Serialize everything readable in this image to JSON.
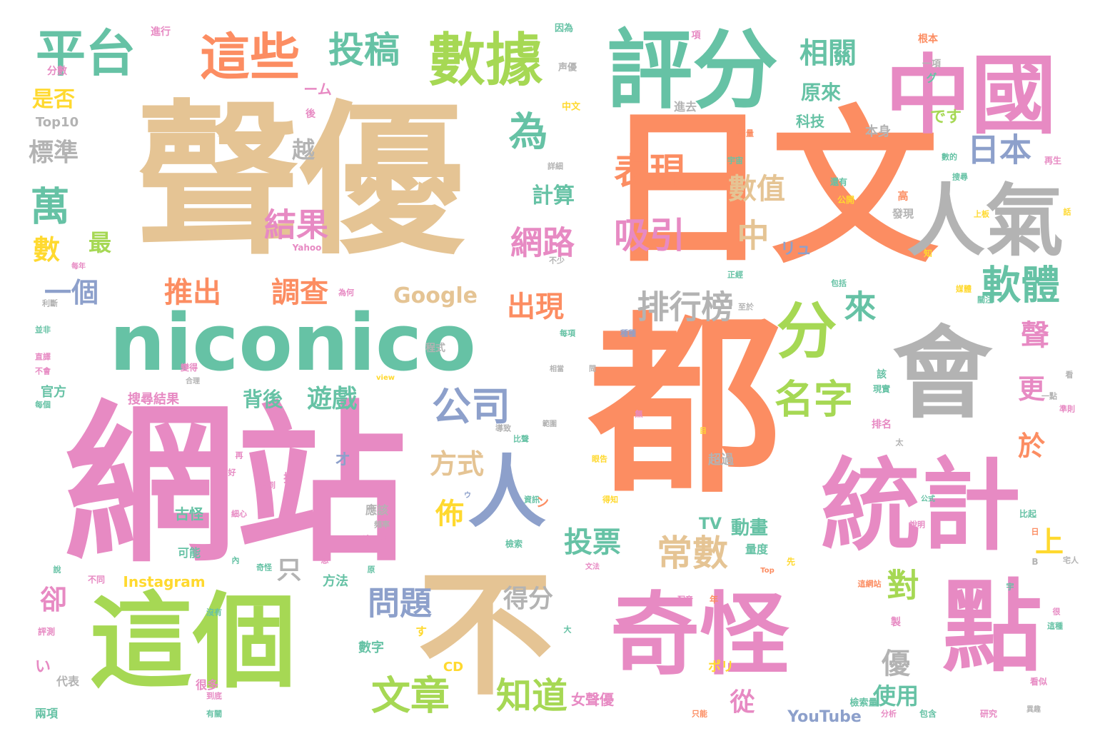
{
  "palette": {
    "orange": "#FC8D62",
    "tan": "#E5C494",
    "pink": "#E78AC3",
    "teal": "#66C2A5",
    "green": "#A6D854",
    "gray": "#B3B3B3",
    "blue": "#8DA0CB",
    "yellow": "#FFD92F"
  },
  "words": [
    {
      "text": "聲優",
      "color": "tan"
    },
    {
      "text": "日文",
      "color": "orange"
    },
    {
      "text": "都",
      "color": "orange"
    },
    {
      "text": "網站",
      "color": "pink"
    },
    {
      "text": "不",
      "color": "tan"
    },
    {
      "text": "評分",
      "color": "teal"
    },
    {
      "text": "中國",
      "color": "pink"
    },
    {
      "text": "統計",
      "color": "pink"
    },
    {
      "text": "奇怪",
      "color": "pink"
    },
    {
      "text": "點",
      "color": "pink"
    },
    {
      "text": "這個",
      "color": "green"
    },
    {
      "text": "會",
      "color": "gray"
    },
    {
      "text": "niconico",
      "color": "teal"
    },
    {
      "text": "數據",
      "color": "green"
    },
    {
      "text": "人氣",
      "color": "gray"
    },
    {
      "text": "這些",
      "color": "orange"
    },
    {
      "text": "平台",
      "color": "teal"
    },
    {
      "text": "人",
      "color": "blue"
    },
    {
      "text": "分",
      "color": "green"
    },
    {
      "text": "投稿",
      "color": "teal"
    },
    {
      "text": "表現",
      "color": "orange"
    },
    {
      "text": "吸引",
      "color": "pink"
    },
    {
      "text": "軟體",
      "color": "teal"
    },
    {
      "text": "公司",
      "color": "blue"
    },
    {
      "text": "名字",
      "color": "green"
    },
    {
      "text": "排行榜",
      "color": "gray"
    },
    {
      "text": "常數",
      "color": "tan"
    },
    {
      "text": "文章",
      "color": "green"
    },
    {
      "text": "知道",
      "color": "green"
    },
    {
      "text": "問題",
      "color": "blue"
    },
    {
      "text": "相關",
      "color": "teal"
    },
    {
      "text": "為",
      "color": "teal"
    },
    {
      "text": "日本",
      "color": "blue"
    },
    {
      "text": "結果",
      "color": "pink"
    },
    {
      "text": "萬",
      "color": "teal"
    },
    {
      "text": "網路",
      "color": "pink"
    },
    {
      "text": "數值",
      "color": "tan"
    },
    {
      "text": "中",
      "color": "tan"
    },
    {
      "text": "推出",
      "color": "orange"
    },
    {
      "text": "調查",
      "color": "orange"
    },
    {
      "text": "出現",
      "color": "orange"
    },
    {
      "text": "一個",
      "color": "blue"
    },
    {
      "text": "標準",
      "color": "gray"
    },
    {
      "text": "是否",
      "color": "yellow"
    },
    {
      "text": "越",
      "color": "gray"
    },
    {
      "text": "計算",
      "color": "teal"
    },
    {
      "text": "方式",
      "color": "tan"
    },
    {
      "text": "投票",
      "color": "teal"
    },
    {
      "text": "來",
      "color": "teal"
    },
    {
      "text": "更",
      "color": "pink"
    },
    {
      "text": "聲",
      "color": "pink"
    },
    {
      "text": "對",
      "color": "green"
    },
    {
      "text": "遊戲",
      "color": "teal"
    },
    {
      "text": "背後",
      "color": "teal"
    },
    {
      "text": "得分",
      "color": "gray"
    },
    {
      "text": "優",
      "color": "gray"
    },
    {
      "text": "使用",
      "color": "teal"
    },
    {
      "text": "佈",
      "color": "yellow"
    },
    {
      "text": "上",
      "color": "yellow"
    },
    {
      "text": "於",
      "color": "orange"
    },
    {
      "text": "卻",
      "color": "pink"
    },
    {
      "text": "數",
      "color": "yellow"
    },
    {
      "text": "最",
      "color": "green"
    },
    {
      "text": "Google",
      "color": "tan"
    },
    {
      "text": "從",
      "color": "pink"
    },
    {
      "text": "只",
      "color": "gray"
    },
    {
      "text": "原來",
      "color": "teal"
    },
    {
      "text": "動畫",
      "color": "teal"
    },
    {
      "text": "TV",
      "color": "teal"
    },
    {
      "text": "YouTube",
      "color": "blue"
    },
    {
      "text": "Instagram",
      "color": "yellow"
    },
    {
      "text": "Top10",
      "color": "gray"
    },
    {
      "text": "分數",
      "color": "pink"
    },
    {
      "text": "進行",
      "color": "pink"
    },
    {
      "text": "搜尋結果",
      "color": "pink"
    },
    {
      "text": "女聲優",
      "color": "pink"
    },
    {
      "text": "官方",
      "color": "teal"
    },
    {
      "text": "科技",
      "color": "teal"
    },
    {
      "text": "本身",
      "color": "gray"
    },
    {
      "text": "古怪",
      "color": "teal"
    },
    {
      "text": "可能",
      "color": "teal"
    },
    {
      "text": "方法",
      "color": "teal"
    },
    {
      "text": "數字",
      "color": "teal"
    },
    {
      "text": "代表",
      "color": "gray"
    },
    {
      "text": "兩項",
      "color": "teal"
    },
    {
      "text": "超過",
      "color": "gray"
    },
    {
      "text": "很多",
      "color": "pink"
    },
    {
      "text": "應該",
      "color": "gray"
    },
    {
      "text": "量度",
      "color": "teal"
    },
    {
      "text": "CD",
      "color": "yellow"
    },
    {
      "text": "ポリ",
      "color": "yellow"
    },
    {
      "text": "オ",
      "color": "blue"
    },
    {
      "text": "リュ",
      "color": "blue"
    },
    {
      "text": "です",
      "color": "green"
    },
    {
      "text": "ーム",
      "color": "pink"
    },
    {
      "text": "進去",
      "color": "gray"
    },
    {
      "text": "中文",
      "color": "yellow"
    },
    {
      "text": "声優",
      "color": "gray"
    },
    {
      "text": "項",
      "color": "pink"
    },
    {
      "text": "因為",
      "color": "teal"
    },
    {
      "text": "根本",
      "color": "orange"
    },
    {
      "text": "一項",
      "color": "gray"
    },
    {
      "text": "グ",
      "color": "teal"
    },
    {
      "text": "後",
      "color": "pink"
    },
    {
      "text": "詳細",
      "color": "gray"
    },
    {
      "text": "銷量",
      "color": "orange"
    },
    {
      "text": "宇宙",
      "color": "teal"
    },
    {
      "text": "還有",
      "color": "teal"
    },
    {
      "text": "公開",
      "color": "yellow"
    },
    {
      "text": "數的",
      "color": "teal"
    },
    {
      "text": "搜尋",
      "color": "teal"
    },
    {
      "text": "再生",
      "color": "pink"
    },
    {
      "text": "高",
      "color": "orange"
    },
    {
      "text": "發現",
      "color": "gray"
    },
    {
      "text": "上板",
      "color": "yellow"
    },
    {
      "text": "話",
      "color": "yellow"
    },
    {
      "text": "Yahoo",
      "color": "pink"
    },
    {
      "text": "每年",
      "color": "pink"
    },
    {
      "text": "為何",
      "color": "pink"
    },
    {
      "text": "利斷",
      "color": "gray"
    },
    {
      "text": "並非",
      "color": "teal"
    },
    {
      "text": "直譯",
      "color": "pink"
    },
    {
      "text": "不會",
      "color": "pink"
    },
    {
      "text": "每個",
      "color": "teal"
    },
    {
      "text": "變得",
      "color": "pink"
    },
    {
      "text": "程式",
      "color": "gray"
    },
    {
      "text": "view",
      "color": "yellow"
    },
    {
      "text": "合理",
      "color": "gray"
    },
    {
      "text": "相當",
      "color": "gray"
    },
    {
      "text": "問",
      "color": "gray"
    },
    {
      "text": "不少",
      "color": "gray"
    },
    {
      "text": "正經",
      "color": "teal"
    },
    {
      "text": "至於",
      "color": "gray"
    },
    {
      "text": "每項",
      "color": "teal"
    },
    {
      "text": "種種",
      "color": "blue"
    },
    {
      "text": "包括",
      "color": "teal"
    },
    {
      "text": "關注",
      "color": "teal"
    },
    {
      "text": "媒體",
      "color": "yellow"
    },
    {
      "text": "該",
      "color": "teal"
    },
    {
      "text": "看",
      "color": "gray"
    },
    {
      "text": "一點",
      "color": "gray"
    },
    {
      "text": "準則",
      "color": "pink"
    },
    {
      "text": "現實",
      "color": "teal"
    },
    {
      "text": "範圍",
      "color": "gray"
    },
    {
      "text": "導致",
      "color": "gray"
    },
    {
      "text": "比聲",
      "color": "teal"
    },
    {
      "text": "眼告",
      "color": "yellow"
    },
    {
      "text": "得知",
      "color": "yellow"
    },
    {
      "text": "資訊",
      "color": "teal"
    },
    {
      "text": "頻率",
      "color": "gray"
    },
    {
      "text": "這一項",
      "color": "pink"
    },
    {
      "text": "檢索",
      "color": "teal"
    },
    {
      "text": "檢索量",
      "color": "teal"
    },
    {
      "text": "分析",
      "color": "pink"
    },
    {
      "text": "包含",
      "color": "teal"
    },
    {
      "text": "研究",
      "color": "pink"
    },
    {
      "text": "異趣",
      "color": "gray"
    },
    {
      "text": "只能",
      "color": "orange"
    },
    {
      "text": "有關",
      "color": "teal"
    },
    {
      "text": "到底",
      "color": "pink"
    },
    {
      "text": "評測",
      "color": "pink"
    },
    {
      "text": "沒有",
      "color": "teal"
    },
    {
      "text": "細心",
      "color": "pink"
    },
    {
      "text": "奇怪",
      "color": "teal"
    },
    {
      "text": "想",
      "color": "pink"
    },
    {
      "text": "內",
      "color": "teal"
    },
    {
      "text": "說",
      "color": "teal"
    },
    {
      "text": "不同",
      "color": "pink"
    },
    {
      "text": "原",
      "color": "teal"
    },
    {
      "text": "文法",
      "color": "pink"
    },
    {
      "text": "先",
      "color": "yellow"
    },
    {
      "text": "Top",
      "color": "orange"
    },
    {
      "text": "B",
      "color": "gray"
    },
    {
      "text": "宅人",
      "color": "gray"
    },
    {
      "text": "很",
      "color": "pink"
    },
    {
      "text": "這種",
      "color": "teal"
    },
    {
      "text": "看似",
      "color": "pink"
    },
    {
      "text": "配音",
      "color": "pink"
    },
    {
      "text": "年",
      "color": "orange"
    },
    {
      "text": "大",
      "color": "teal"
    },
    {
      "text": "製",
      "color": "pink"
    },
    {
      "text": "這網站",
      "color": "orange"
    },
    {
      "text": "宇",
      "color": "teal"
    },
    {
      "text": "日",
      "color": "orange"
    },
    {
      "text": "比起",
      "color": "teal"
    },
    {
      "text": "說明",
      "color": "pink"
    },
    {
      "text": "公式",
      "color": "teal"
    },
    {
      "text": "太",
      "color": "gray"
    },
    {
      "text": "排名",
      "color": "pink"
    },
    {
      "text": "目",
      "color": "yellow"
    },
    {
      "text": "無",
      "color": "pink"
    },
    {
      "text": "再",
      "color": "pink"
    },
    {
      "text": "好",
      "color": "pink"
    },
    {
      "text": "看到",
      "color": "pink"
    },
    {
      "text": "捨",
      "color": "pink"
    },
    {
      "text": "ン",
      "color": "orange"
    },
    {
      "text": "ウ",
      "color": "blue"
    },
    {
      "text": "知",
      "color": "yellow"
    },
    {
      "text": "い",
      "color": "pink"
    },
    {
      "text": "す",
      "color": "yellow"
    },
    {
      "text": "A",
      "color": "blue"
    }
  ]
}
